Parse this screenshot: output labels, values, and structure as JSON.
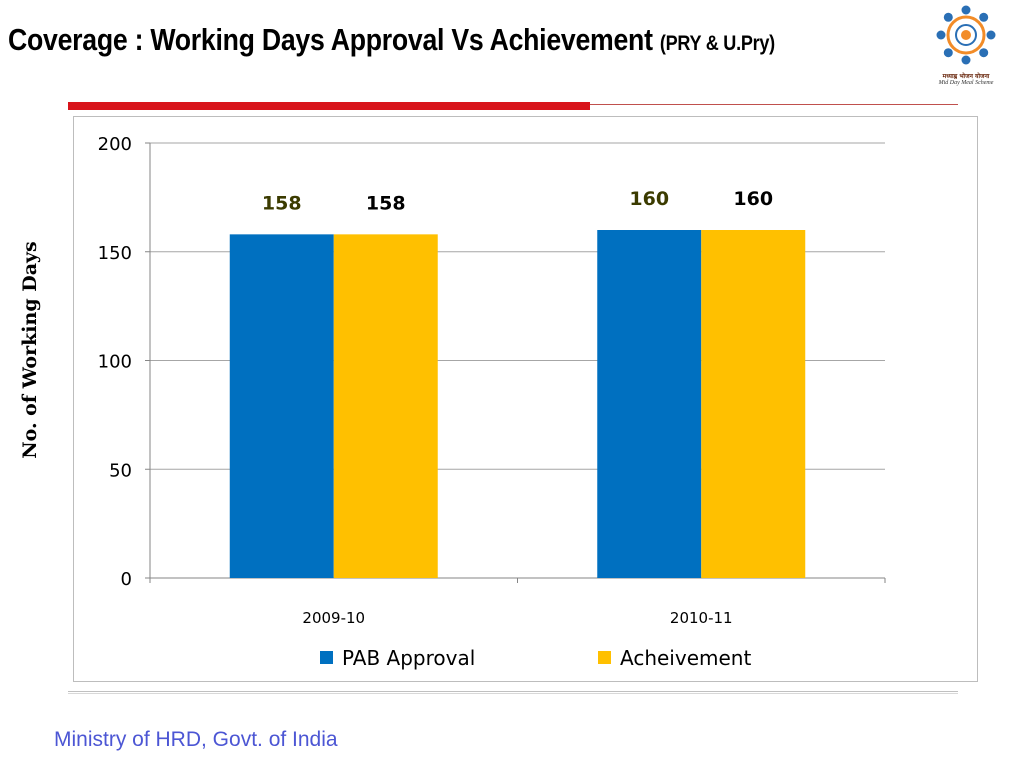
{
  "slide": {
    "title": "Coverage : Working Days Approval Vs Achievement",
    "subtitle": "(PRY & U.Pry)",
    "footer": "Ministry of HRD, Govt. of India",
    "logo_text_hindi": "मध्याह्न भोजन योजना",
    "logo_text_english": "Mid Day Meal Scheme"
  },
  "colors": {
    "pab": "#0070c0",
    "achievement": "#ffc000",
    "accent_red": "#d8141b",
    "footer_text": "#4c56d4",
    "label_olive": "#3b3b00"
  },
  "chart_data": {
    "type": "bar",
    "title": "",
    "xlabel": "",
    "ylabel": "No. of Working Days",
    "categories": [
      "2009-10",
      "2010-11"
    ],
    "series": [
      {
        "name": "PAB Approval",
        "values": [
          158,
          160
        ],
        "label_color": "#3b3b00"
      },
      {
        "name": "Acheivement",
        "values": [
          158,
          160
        ],
        "label_color": "#000000"
      }
    ],
    "ylim": [
      0,
      200
    ],
    "yticks": [
      0,
      50,
      100,
      150,
      200
    ],
    "grid": true,
    "legend": "bottom"
  }
}
